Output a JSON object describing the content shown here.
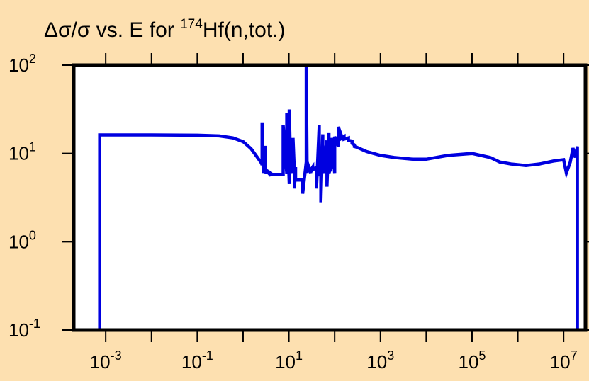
{
  "chart_data": {
    "type": "line",
    "title": {
      "prefix": "Δσ/σ vs. E for ",
      "superscript": "174",
      "suffix": "Hf(n,tot.)"
    },
    "xlabel": "",
    "ylabel": "",
    "x_scale": "log",
    "y_scale": "log",
    "xlim": [
      0.0002,
      30000000
    ],
    "ylim": [
      0.1,
      100
    ],
    "grid": false,
    "legend": "none",
    "line_color": "#0000e0",
    "plot_background": "#ffffff",
    "page_background": "#fde0b0",
    "x_ticks": [
      {
        "base": "10",
        "exp": "-3",
        "value": 0.001
      },
      {
        "base": "10",
        "exp": "-1",
        "value": 0.1
      },
      {
        "base": "10",
        "exp": "1",
        "value": 10
      },
      {
        "base": "10",
        "exp": "3",
        "value": 1000
      },
      {
        "base": "10",
        "exp": "5",
        "value": 100000
      },
      {
        "base": "10",
        "exp": "7",
        "value": 10000000
      }
    ],
    "y_ticks": [
      {
        "base": "10",
        "exp": "-1",
        "value": 0.1
      },
      {
        "base": "10",
        "exp": "0",
        "value": 1
      },
      {
        "base": "10",
        "exp": "1",
        "value": 10
      },
      {
        "base": "10",
        "exp": "2",
        "value": 100
      }
    ],
    "series": [
      {
        "x": [
          0.00074,
          0.00074,
          0.00074,
          0.01,
          0.1,
          0.3,
          0.6,
          1.0,
          1.5,
          2.0,
          2.5,
          2.6,
          2.6,
          2.75,
          2.75,
          2.9,
          2.9,
          3.05,
          3.05,
          3.2,
          3.2,
          3.6,
          3.6,
          4.0,
          4.0,
          7.5,
          7.5,
          9.0,
          9.0,
          10.2,
          10.2,
          10.8,
          10.8,
          11.5,
          11.5,
          12.3,
          12.3,
          13.2,
          13.2,
          14.0,
          14.0,
          20.0,
          20.0,
          24.0,
          24.0,
          25.0,
          25.0,
          30.0,
          30.0,
          33.0,
          33.0,
          40.0,
          40.0,
          46.0,
          46.0,
          50.0,
          50.0,
          55.0,
          55.0,
          60.0,
          60.0,
          68.0,
          68.0,
          75.0,
          75.0,
          85.0,
          85.0,
          100.0,
          100.0,
          120.0,
          120.0,
          140.0,
          140.0,
          160.0,
          160.0,
          200.0,
          200.0,
          240.0,
          240.0,
          270.0,
          270.0,
          300.0,
          500.0,
          1000.0,
          2000.0,
          5000.0,
          10000.0,
          30000.0,
          100000.0,
          250000.0,
          400000.0,
          700000.0,
          1500000.0,
          3000000.0,
          6000000.0,
          10000000.0,
          11500000.0,
          11500000.0,
          14000000.0,
          16000000.0,
          18000000.0,
          20000000.0,
          20000000.0
        ],
        "y": [
          0.1,
          16.2,
          16.2,
          16.2,
          16.1,
          15.8,
          15.0,
          13.6,
          11.3,
          9.2,
          7.8,
          7.4,
          22.5,
          6.5,
          6.0,
          10.5,
          6.3,
          12.2,
          6.5,
          5.9,
          6.4,
          6.0,
          6.2,
          6.0,
          5.8,
          5.8,
          21.0,
          5.9,
          29.0,
          4.5,
          31.5,
          9.0,
          7.0,
          6.0,
          14.0,
          6.0,
          15.0,
          6.0,
          4.0,
          7.0,
          5.0,
          5.0,
          3.5,
          8.0,
          100.0,
          6.0,
          8.0,
          6.0,
          6.5,
          7.0,
          6.5,
          7.0,
          4.0,
          21.0,
          5.5,
          10.0,
          2.8,
          16.5,
          8.0,
          6.0,
          9.5,
          14.0,
          4.2,
          17.0,
          6.0,
          7.0,
          15.0,
          6.0,
          15.5,
          12.0,
          20.0,
          16.0,
          14.8,
          15.5,
          14.5,
          15.0,
          14.0,
          13.8,
          13.0,
          12.5,
          12.0,
          11.8,
          10.5,
          9.5,
          9.0,
          8.6,
          8.6,
          9.5,
          10.0,
          9.0,
          8.0,
          7.6,
          7.3,
          7.6,
          8.2,
          8.5,
          6.0,
          6.0,
          8.0,
          11.5,
          9.0,
          12.0,
          0.1
        ]
      }
    ]
  }
}
